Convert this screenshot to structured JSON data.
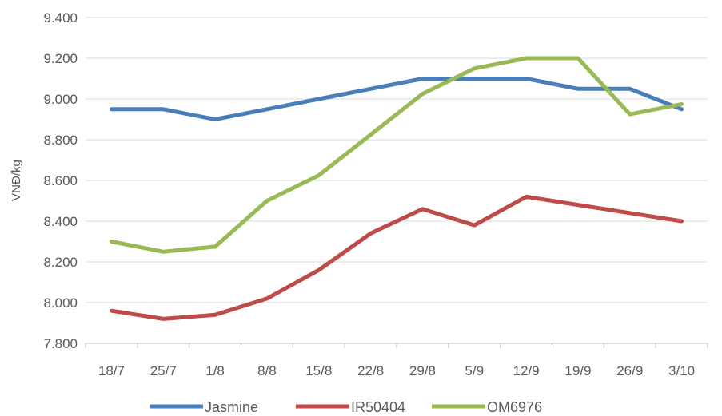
{
  "chart_data": {
    "type": "line",
    "title": "",
    "xlabel": "",
    "ylabel": "VNĐ/kg",
    "categories": [
      "18/7",
      "25/7",
      "1/8",
      "8/8",
      "15/8",
      "22/8",
      "29/8",
      "5/9",
      "12/9",
      "19/9",
      "26/9",
      "3/10"
    ],
    "ylim": [
      7800,
      9400
    ],
    "yticks": [
      7800,
      8000,
      8200,
      8400,
      8600,
      8800,
      9000,
      9200,
      9400
    ],
    "ytick_labels": [
      "7.800",
      "8.000",
      "8.200",
      "8.400",
      "8.600",
      "8.800",
      "9.000",
      "9.200",
      "9.400"
    ],
    "grid": true,
    "legend_position": "bottom",
    "series": [
      {
        "name": "Jasmine",
        "color": "#4a7ebb",
        "values": [
          8950,
          8950,
          8900,
          8950,
          9000,
          9050,
          9100,
          9100,
          9100,
          9050,
          9050,
          8950
        ]
      },
      {
        "name": "IR50404",
        "color": "#be4b48",
        "values": [
          7960,
          7920,
          7940,
          8020,
          8160,
          8340,
          8460,
          8380,
          8520,
          8480,
          8440,
          8400
        ]
      },
      {
        "name": "OM6976",
        "color": "#98b954",
        "values": [
          8300,
          8250,
          8275,
          8500,
          8625,
          8825,
          9025,
          9150,
          9200,
          9200,
          8925,
          8975
        ]
      }
    ]
  }
}
